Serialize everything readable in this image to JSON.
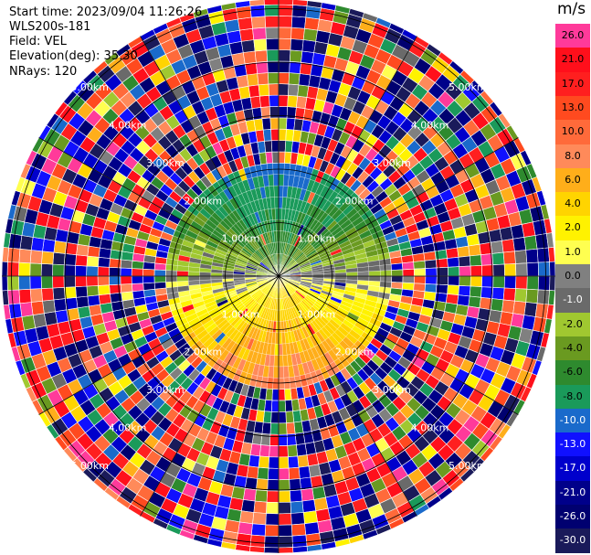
{
  "info": {
    "start_time": "Start time: 2023/09/04 11:26:26",
    "instrument": "WLS200s-181",
    "field": "Field: VEL",
    "elevation": "Elevation(deg): 35.30",
    "nrays": "NRays: 120"
  },
  "colorbar": {
    "unit": "m/s",
    "bins": [
      {
        "label": "26.0",
        "color": "#ff3a9a"
      },
      {
        "label": "21.0",
        "color": "#ff0f1b"
      },
      {
        "label": "17.0",
        "color": "#ff1f1f"
      },
      {
        "label": "13.0",
        "color": "#ff4a1f"
      },
      {
        "label": "10.0",
        "color": "#ff6a3a"
      },
      {
        "label": "8.0",
        "color": "#ff8a5a"
      },
      {
        "label": "6.0",
        "color": "#ffae1a"
      },
      {
        "label": "4.0",
        "color": "#ffd400"
      },
      {
        "label": "2.0",
        "color": "#fff200"
      },
      {
        "label": "1.0",
        "color": "#ffff50"
      },
      {
        "label": "0.0",
        "color": "#808080"
      },
      {
        "label": "-1.0",
        "color": "#6a6a6a"
      },
      {
        "label": "-2.0",
        "color": "#a0c830"
      },
      {
        "label": "-4.0",
        "color": "#6a9a20"
      },
      {
        "label": "-6.0",
        "color": "#2e8a2e"
      },
      {
        "label": "-8.0",
        "color": "#1a9a5a"
      },
      {
        "label": "-10.0",
        "color": "#1a6acb"
      },
      {
        "label": "-13.0",
        "color": "#1010ff"
      },
      {
        "label": "-17.0",
        "color": "#0000cc"
      },
      {
        "label": "-21.0",
        "color": "#00008a"
      },
      {
        "label": "-26.0",
        "color": "#000070"
      },
      {
        "label": "-30.0",
        "color": "#1a1a5a"
      }
    ]
  },
  "chart_data": {
    "type": "heatmap",
    "subtype": "radar-ppi",
    "field": "VEL",
    "nrays": 120,
    "range_rings_km": [
      1.0,
      2.0,
      3.0,
      4.0,
      5.0
    ],
    "ring_labels": [
      "1.00km",
      "2.00km",
      "3.00km",
      "4.00km",
      "5.00km"
    ],
    "azimuth_lines_deg": [
      0,
      30,
      60,
      90,
      120,
      150,
      180,
      210,
      240,
      270,
      300,
      330
    ],
    "max_range_km": 5.5,
    "value_range": [
      -30.0,
      26.0
    ],
    "near_field_pattern": "north: negative velocities (greens); south: positive velocities (yellow/orange); far range: noisy random values"
  }
}
